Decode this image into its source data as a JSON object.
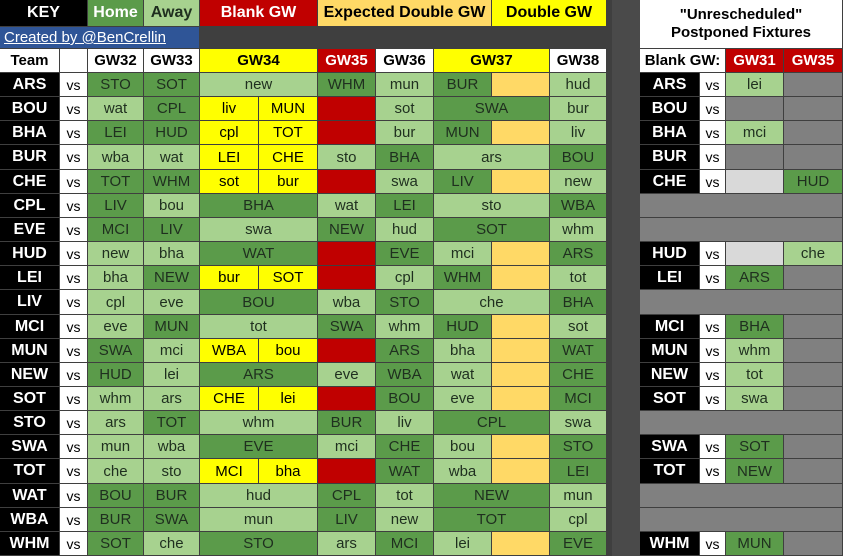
{
  "key": {
    "key_label": "KEY",
    "home_label": "Home",
    "away_label": "Away",
    "blank_label": "Blank GW",
    "expected_double_label": "Expected Double GW",
    "double_label": "Double GW",
    "credit_link": "Created by @BenCrellin",
    "postponed_title": "\"Unrescheduled\" Postponed Fixtures"
  },
  "headers": {
    "team": "Team",
    "gw32": "GW32",
    "gw33": "GW33",
    "gw34": "GW34",
    "gw35": "GW35",
    "gw36": "GW36",
    "gw37": "GW37",
    "gw38": "GW38",
    "blank_gw": "Blank GW:",
    "gw31": "GW31",
    "gw35b": "GW35"
  },
  "vs_label": "vs",
  "rows": [
    {
      "team": "ARS",
      "gw32": "STO",
      "gw33": "SOT",
      "gw34": [
        "new"
      ],
      "gw35": "WHM",
      "gw36": "mun",
      "gw37": [
        "BUR",
        ""
      ],
      "gw38": "hud",
      "p_team": "ARS",
      "p31": "lei",
      "p35": ""
    },
    {
      "team": "BOU",
      "gw32": "wat",
      "gw33": "CPL",
      "gw34": [
        "liv",
        "MUN"
      ],
      "gw35": "",
      "gw36": "sot",
      "gw37": [
        "SWA"
      ],
      "gw38": "bur",
      "p_team": "BOU",
      "p31": "",
      "p35": ""
    },
    {
      "team": "BHA",
      "gw32": "LEI",
      "gw33": "HUD",
      "gw34": [
        "cpl",
        "TOT"
      ],
      "gw35": "",
      "gw36": "bur",
      "gw37": [
        "MUN",
        ""
      ],
      "gw38": "liv",
      "p_team": "BHA",
      "p31": "mci",
      "p35": ""
    },
    {
      "team": "BUR",
      "gw32": "wba",
      "gw33": "wat",
      "gw34": [
        "LEI",
        "CHE"
      ],
      "gw35": "sto",
      "gw36": "BHA",
      "gw37": [
        "ars"
      ],
      "gw38": "BOU",
      "p_team": "BUR",
      "p31": "",
      "p35": ""
    },
    {
      "team": "CHE",
      "gw32": "TOT",
      "gw33": "WHM",
      "gw34": [
        "sot",
        "bur"
      ],
      "gw35": "",
      "gw36": "swa",
      "gw37": [
        "LIV",
        ""
      ],
      "gw38": "new",
      "p_team": "CHE",
      "p31": "",
      "p35": "HUD"
    },
    {
      "team": "CPL",
      "gw32": "LIV",
      "gw33": "bou",
      "gw34": [
        "BHA"
      ],
      "gw35": "wat",
      "gw36": "LEI",
      "gw37": [
        "sto"
      ],
      "gw38": "WBA",
      "p_team": "",
      "p31": "",
      "p35": ""
    },
    {
      "team": "EVE",
      "gw32": "MCI",
      "gw33": "LIV",
      "gw34": [
        "swa"
      ],
      "gw35": "NEW",
      "gw36": "hud",
      "gw37": [
        "SOT"
      ],
      "gw38": "whm",
      "p_team": "",
      "p31": "",
      "p35": ""
    },
    {
      "team": "HUD",
      "gw32": "new",
      "gw33": "bha",
      "gw34": [
        "WAT"
      ],
      "gw35": "",
      "gw36": "EVE",
      "gw37": [
        "mci",
        ""
      ],
      "gw38": "ARS",
      "p_team": "HUD",
      "p31": "",
      "p35": "che"
    },
    {
      "team": "LEI",
      "gw32": "bha",
      "gw33": "NEW",
      "gw34": [
        "bur",
        "SOT"
      ],
      "gw35": "",
      "gw36": "cpl",
      "gw37": [
        "WHM",
        ""
      ],
      "gw38": "tot",
      "p_team": "LEI",
      "p31": "ARS",
      "p35": ""
    },
    {
      "team": "LIV",
      "gw32": "cpl",
      "gw33": "eve",
      "gw34": [
        "BOU"
      ],
      "gw35": "wba",
      "gw36": "STO",
      "gw37": [
        "che"
      ],
      "gw38": "BHA",
      "p_team": "",
      "p31": "",
      "p35": ""
    },
    {
      "team": "MCI",
      "gw32": "eve",
      "gw33": "MUN",
      "gw34": [
        "tot"
      ],
      "gw35": "SWA",
      "gw36": "whm",
      "gw37": [
        "HUD",
        ""
      ],
      "gw38": "sot",
      "p_team": "MCI",
      "p31": "BHA",
      "p35": ""
    },
    {
      "team": "MUN",
      "gw32": "SWA",
      "gw33": "mci",
      "gw34": [
        "WBA",
        "bou"
      ],
      "gw35": "",
      "gw36": "ARS",
      "gw37": [
        "bha",
        ""
      ],
      "gw38": "WAT",
      "p_team": "MUN",
      "p31": "whm",
      "p35": ""
    },
    {
      "team": "NEW",
      "gw32": "HUD",
      "gw33": "lei",
      "gw34": [
        "ARS"
      ],
      "gw35": "eve",
      "gw36": "WBA",
      "gw37": [
        "wat",
        ""
      ],
      "gw38": "CHE",
      "p_team": "NEW",
      "p31": "tot",
      "p35": ""
    },
    {
      "team": "SOT",
      "gw32": "whm",
      "gw33": "ars",
      "gw34": [
        "CHE",
        "lei"
      ],
      "gw35": "",
      "gw36": "BOU",
      "gw37": [
        "eve",
        ""
      ],
      "gw38": "MCI",
      "p_team": "SOT",
      "p31": "swa",
      "p35": ""
    },
    {
      "team": "STO",
      "gw32": "ars",
      "gw33": "TOT",
      "gw34": [
        "whm"
      ],
      "gw35": "BUR",
      "gw36": "liv",
      "gw37": [
        "CPL"
      ],
      "gw38": "swa",
      "p_team": "",
      "p31": "",
      "p35": ""
    },
    {
      "team": "SWA",
      "gw32": "mun",
      "gw33": "wba",
      "gw34": [
        "EVE"
      ],
      "gw35": "mci",
      "gw36": "CHE",
      "gw37": [
        "bou",
        ""
      ],
      "gw38": "STO",
      "p_team": "SWA",
      "p31": "SOT",
      "p35": ""
    },
    {
      "team": "TOT",
      "gw32": "che",
      "gw33": "sto",
      "gw34": [
        "MCI",
        "bha"
      ],
      "gw35": "",
      "gw36": "WAT",
      "gw37": [
        "wba",
        ""
      ],
      "gw38": "LEI",
      "p_team": "TOT",
      "p31": "NEW",
      "p35": ""
    },
    {
      "team": "WAT",
      "gw32": "BOU",
      "gw33": "BUR",
      "gw34": [
        "hud"
      ],
      "gw35": "CPL",
      "gw36": "tot",
      "gw37": [
        "NEW"
      ],
      "gw38": "mun",
      "p_team": "",
      "p31": "",
      "p35": ""
    },
    {
      "team": "WBA",
      "gw32": "BUR",
      "gw33": "SWA",
      "gw34": [
        "mun"
      ],
      "gw35": "LIV",
      "gw36": "new",
      "gw37": [
        "TOT"
      ],
      "gw38": "cpl",
      "p_team": "",
      "p31": "",
      "p35": ""
    },
    {
      "team": "WHM",
      "gw32": "SOT",
      "gw33": "che",
      "gw34": [
        "STO"
      ],
      "gw35": "ars",
      "gw36": "MCI",
      "gw37": [
        "lei",
        ""
      ],
      "gw38": "EVE",
      "p_team": "WHM",
      "p31": "MUN",
      "p35": ""
    }
  ]
}
